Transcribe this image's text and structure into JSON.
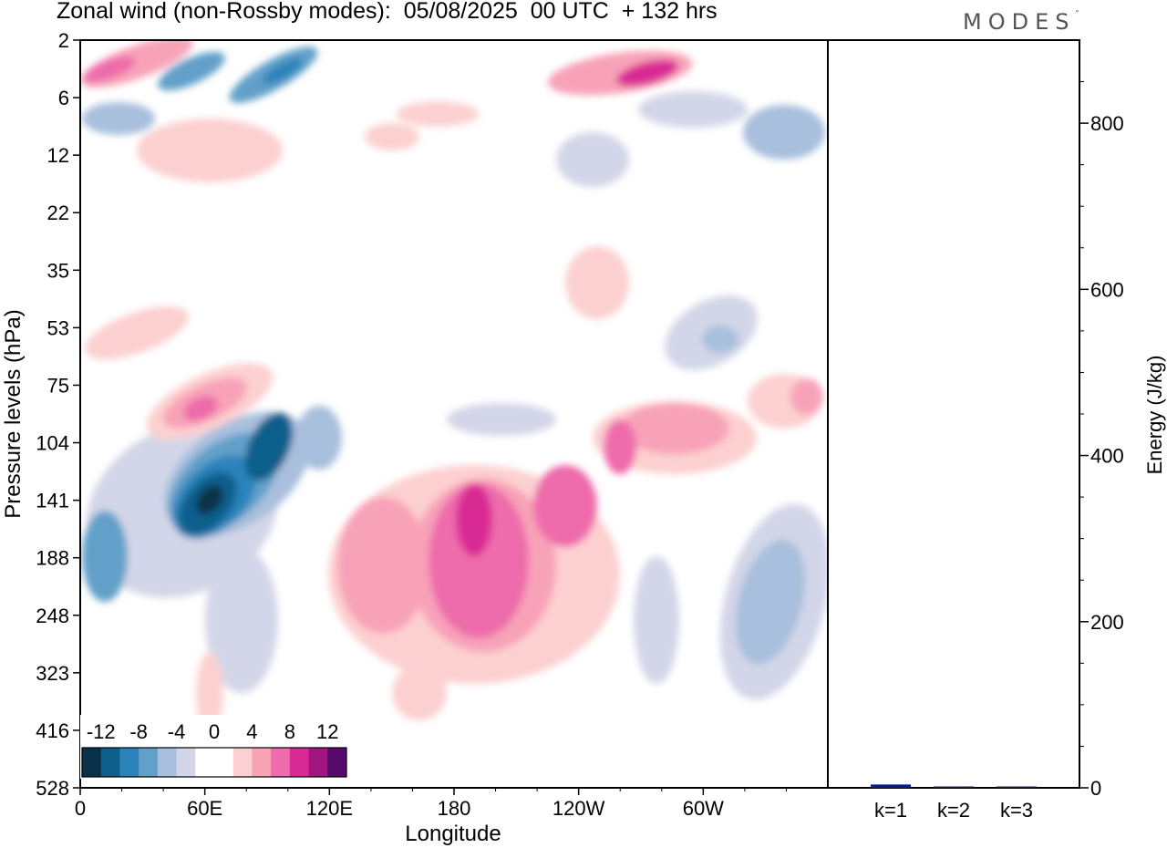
{
  "header": {
    "title": "Zonal wind (non-Rossby modes):  05/08/2025  00 UTC  + 132 hrs",
    "logo_text": "MODES",
    "logo_mark": "°"
  },
  "chart_data": [
    {
      "type": "heatmap",
      "title": "Zonal wind (non-Rossby modes):  05/08/2025  00 UTC  + 132 hrs",
      "xlabel": "Longitude",
      "ylabel": "Pressure levels (hPa)",
      "x_ticks": [
        "0",
        "60E",
        "120E",
        "180",
        "120W",
        "60W"
      ],
      "y_ticks": [
        "2",
        "6",
        "12",
        "22",
        "35",
        "53",
        "75",
        "104",
        "141",
        "188",
        "248",
        "323",
        "416",
        "528"
      ],
      "colorbar": {
        "labels": [
          "-12",
          "-8",
          "-4",
          "0",
          "4",
          "8",
          "12"
        ],
        "colors": [
          "#083048",
          "#0d5f8c",
          "#2b83ba",
          "#62a0c9",
          "#a8bfdd",
          "#d3d6e8",
          "#ffffff",
          "#ffffff",
          "#fcd0d0",
          "#f8a2b8",
          "#ee6cab",
          "#d92a94",
          "#a1157f",
          "#560a6b"
        ]
      }
    },
    {
      "type": "bar",
      "ylabel": "Energy (J/kg)",
      "categories": [
        "k=1",
        "k=2",
        "k=3"
      ],
      "values": [
        4,
        1,
        0.5
      ],
      "ylim": [
        0,
        900
      ],
      "y_ticks": [
        0,
        200,
        400,
        600,
        800
      ],
      "colors": [
        "#0a1a8c",
        "#1a1a3a",
        "#1a1a3a"
      ]
    }
  ]
}
